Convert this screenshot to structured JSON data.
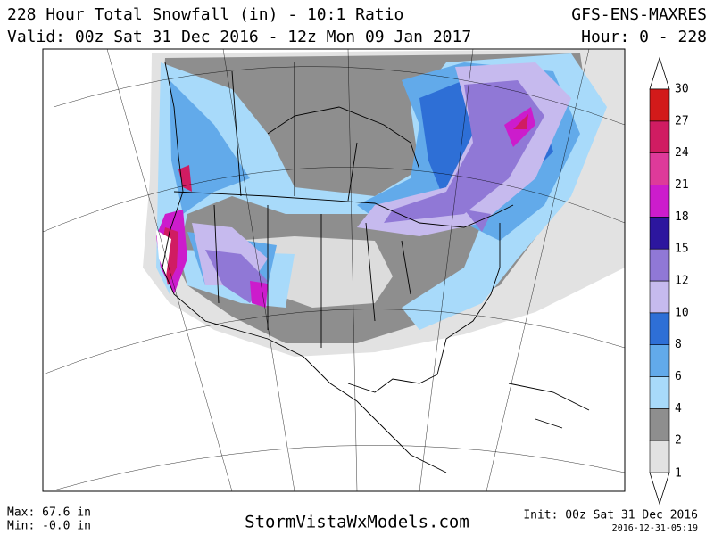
{
  "header": {
    "title": "228 Hour Total Snowfall (in) - 10:1 Ratio",
    "model": "GFS-ENS-MAXRES",
    "valid": "Valid: 00z Sat 31 Dec 2016 - 12z Mon 09 Jan 2017",
    "hours": "Hour: 0 - 228"
  },
  "colorbar": {
    "levels": [
      1,
      2,
      4,
      6,
      8,
      10,
      12,
      15,
      18,
      21,
      24,
      27,
      30
    ],
    "colors": [
      "#e2e2e2",
      "#8e8e8e",
      "#a8dafa",
      "#62aaea",
      "#2e6fd6",
      "#c6baee",
      "#9078d6",
      "#2c169e",
      "#cc1ccc",
      "#de3a9a",
      "#d01c62",
      "#d21a1a"
    ]
  },
  "footer": {
    "max": "Max: 67.6 in",
    "min": "Min: -0.0 in",
    "site": "StormVistaWxModels.com",
    "init": "Init: 00z Sat 31 Dec 2016",
    "stamp": "2016-12-31-05:19"
  }
}
